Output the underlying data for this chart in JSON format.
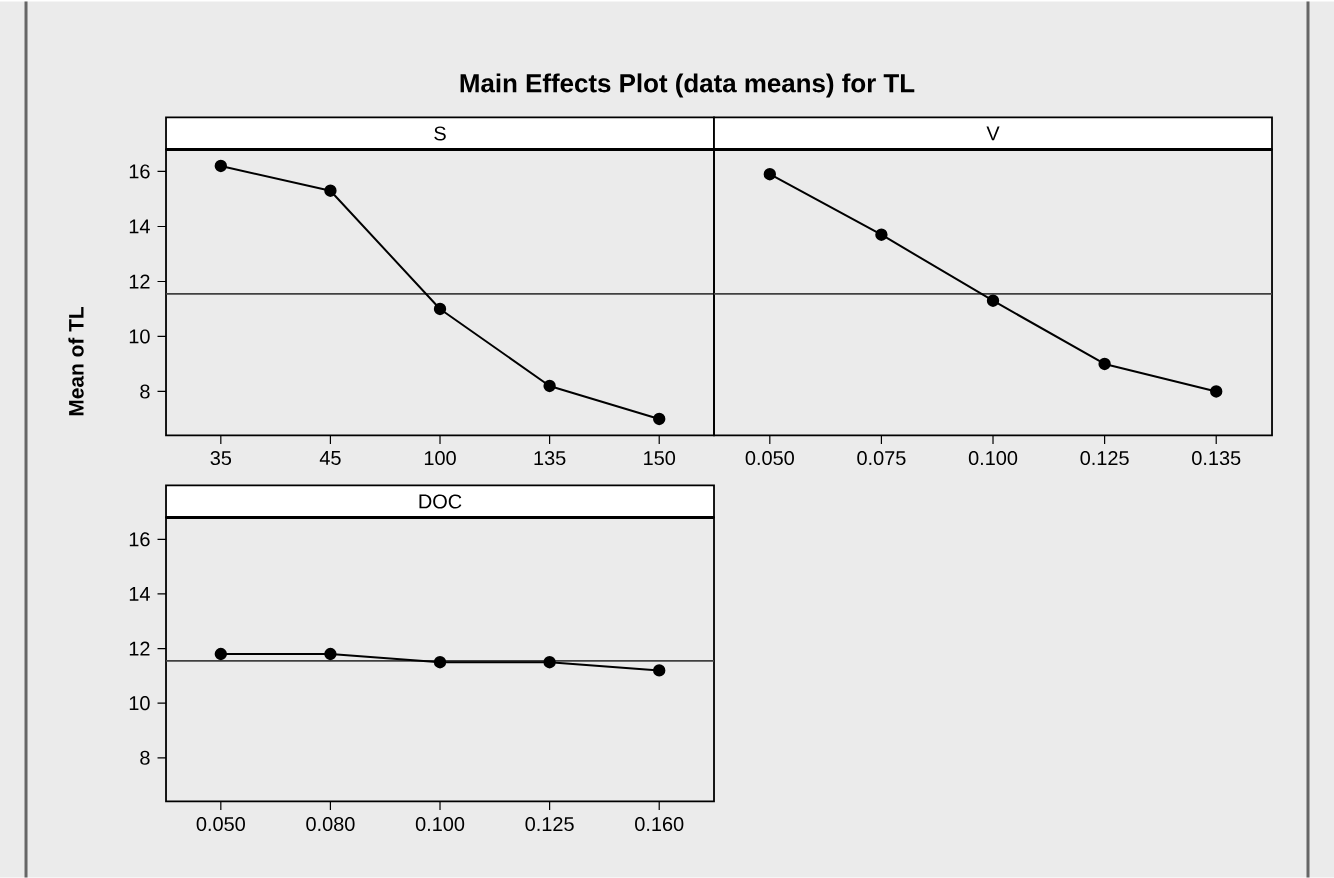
{
  "chart_data": [
    {
      "type": "line",
      "title": "Main Effects Plot (data means) for TL",
      "xlabel": "S",
      "ylabel": "Mean of TL",
      "categories": [
        "35",
        "45",
        "100",
        "135",
        "150"
      ],
      "values": [
        16.2,
        15.3,
        11.0,
        8.2,
        7.0
      ],
      "color": "#000000",
      "ylim": [
        6.4,
        16.8
      ],
      "yticks": [
        8,
        10,
        12,
        14,
        16
      ],
      "ref_lines": [
        {
          "axis": "y",
          "value": 11.55
        }
      ],
      "marker": "circle",
      "line_style": "solid",
      "tick_labels": "xy"
    },
    {
      "type": "line",
      "xlabel": "V",
      "categories": [
        "0.050",
        "0.075",
        "0.100",
        "0.125",
        "0.135"
      ],
      "values": [
        15.9,
        13.7,
        11.3,
        9.0,
        8.0
      ],
      "color": "#000000",
      "ylim": [
        6.4,
        16.8
      ],
      "ref_lines": [
        {
          "axis": "y",
          "value": 11.55
        }
      ],
      "marker": "circle",
      "line_style": "solid",
      "tick_labels": "x"
    },
    {
      "type": "line",
      "xlabel": "DOC",
      "categories": [
        "0.050",
        "0.080",
        "0.100",
        "0.125",
        "0.160"
      ],
      "values": [
        11.8,
        11.8,
        11.5,
        11.5,
        11.2
      ],
      "color": "#000000",
      "ylim": [
        6.4,
        16.8
      ],
      "yticks": [
        8,
        10,
        12,
        14,
        16
      ],
      "ref_lines": [
        {
          "axis": "y",
          "value": 11.55
        }
      ],
      "marker": "circle",
      "line_style": "solid",
      "tick_labels": "xy"
    }
  ]
}
